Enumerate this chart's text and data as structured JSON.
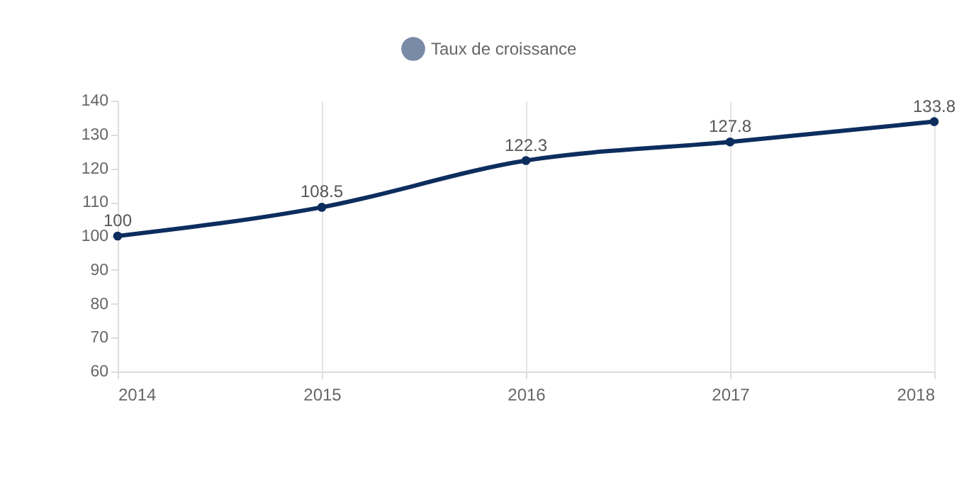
{
  "chart_data": {
    "type": "line",
    "categories": [
      "2014",
      "2015",
      "2016",
      "2017",
      "2018"
    ],
    "series": [
      {
        "name": "Taux de croissance",
        "color": "#0d2d5e",
        "values": [
          100,
          108.5,
          122.3,
          127.8,
          133.8
        ]
      }
    ],
    "ylim": [
      60,
      140
    ],
    "yticks": [
      60,
      70,
      80,
      90,
      100,
      110,
      120,
      130,
      140
    ],
    "grid": "x",
    "legend": "top",
    "marker": "circle",
    "line_style": "solid",
    "data_labels": true
  }
}
